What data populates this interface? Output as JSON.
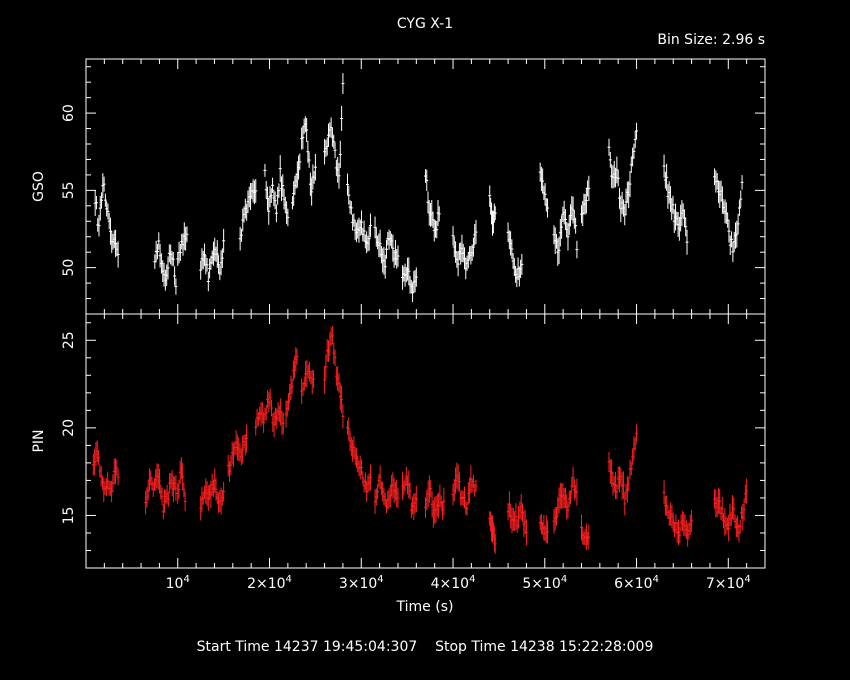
{
  "chart_data": {
    "type": "scatter",
    "title": "CYG X-1",
    "subtitle": "Bin Size:  2.96  s",
    "xlabel": "Time (s)",
    "xlim": [
      0,
      74000
    ],
    "x_tick_labels": [
      "10",
      "2×10",
      "3×10",
      "4×10",
      "5×10",
      "6×10",
      "7×10"
    ],
    "x_tick_exponent": "4",
    "x_ticks": [
      10000,
      20000,
      30000,
      40000,
      50000,
      60000,
      70000
    ],
    "footer": "Start Time 14237 19:45:04:307    Stop Time 14238 15:22:28:009",
    "panels": [
      {
        "ylabel": "GSO",
        "color": "#ffffff",
        "ylim": [
          47,
          63.5
        ],
        "y_ticks": [
          50,
          55,
          60
        ],
        "y_tick_labels": [
          "50",
          "55",
          "60"
        ],
        "segments": [
          {
            "x0": 1000,
            "x1": 3500,
            "v": [
              54.5,
              52.5,
              55.5,
              54.0,
              52.0,
              51.5,
              50.5
            ]
          },
          {
            "x0": 7500,
            "x1": 9800,
            "v": [
              50.5,
              51.5,
              50.0,
              49.5,
              50.5,
              51.0,
              49.0
            ]
          },
          {
            "x0": 10000,
            "x1": 11000,
            "v": [
              50.5,
              51.5,
              52.0
            ]
          },
          {
            "x0": 12500,
            "x1": 15000,
            "v": [
              50.0,
              51.0,
              49.5,
              50.5,
              51.0,
              50.0,
              51.5
            ]
          },
          {
            "x0": 16800,
            "x1": 18500,
            "v": [
              52.0,
              53.5,
              54.5,
              55.0
            ]
          },
          {
            "x0": 19500,
            "x1": 22000,
            "v": [
              56.0,
              54.0,
              55.5,
              53.5,
              56.0,
              54.5,
              53.0
            ]
          },
          {
            "x0": 22500,
            "x1": 23300,
            "v": [
              54.0,
              55.5,
              57.0
            ]
          },
          {
            "x0": 23500,
            "x1": 25000,
            "v": [
              58.0,
              59.5,
              55.0,
              56.5
            ]
          },
          {
            "x0": 26000,
            "x1": 28000,
            "v": [
              57.5,
              58.5,
              59.0,
              57.0,
              56.0,
              62.0
            ]
          },
          {
            "x0": 28500,
            "x1": 31000,
            "v": [
              55.0,
              53.5,
              52.0,
              53.0,
              51.5,
              52.5
            ]
          },
          {
            "x0": 31500,
            "x1": 34000,
            "v": [
              52.5,
              51.5,
              50.0,
              52.0,
              51.0,
              50.5
            ]
          },
          {
            "x0": 34500,
            "x1": 36000,
            "v": [
              49.0,
              50.0,
              48.5,
              49.5
            ]
          },
          {
            "x0": 37000,
            "x1": 38500,
            "v": [
              56.0,
              54.0,
              53.0,
              52.5,
              53.5
            ]
          },
          {
            "x0": 40000,
            "x1": 42500,
            "v": [
              52.0,
              50.5,
              51.5,
              50.0,
              51.0,
              52.0
            ]
          },
          {
            "x0": 44000,
            "x1": 44600,
            "v": [
              54.5,
              52.5,
              53.5
            ]
          },
          {
            "x0": 46000,
            "x1": 47500,
            "v": [
              52.0,
              51.0,
              50.0,
              49.5,
              50.5
            ]
          },
          {
            "x0": 49500,
            "x1": 50300,
            "v": [
              56.5,
              54.0
            ]
          },
          {
            "x0": 51000,
            "x1": 53500,
            "v": [
              52.5,
              51.0,
              53.5,
              52.0,
              54.5,
              51.5
            ]
          },
          {
            "x0": 54000,
            "x1": 54800,
            "v": [
              53.5,
              55.0
            ]
          },
          {
            "x0": 57000,
            "x1": 60000,
            "v": [
              58.0,
              55.5,
              56.5,
              54.0,
              53.5,
              55.0,
              57.0,
              58.5
            ]
          },
          {
            "x0": 63000,
            "x1": 65500,
            "v": [
              56.5,
              55.0,
              54.0,
              53.0,
              52.5,
              53.5,
              52.0
            ]
          },
          {
            "x0": 68500,
            "x1": 71500,
            "v": [
              56.0,
              55.0,
              54.0,
              52.5,
              51.0,
              52.5,
              55.5
            ]
          }
        ]
      },
      {
        "ylabel": "PIN",
        "color": "#ff2020",
        "ylim": [
          12,
          26.5
        ],
        "y_ticks": [
          15,
          20,
          25
        ],
        "y_tick_labels": [
          "15",
          "20",
          "25"
        ],
        "segments": [
          {
            "x0": 800,
            "x1": 3500,
            "v": [
              18.0,
              19.0,
              17.5,
              16.5,
              17.0,
              16.0,
              18.0,
              17.0
            ]
          },
          {
            "x0": 6500,
            "x1": 9800,
            "v": [
              16.0,
              17.0,
              16.5,
              17.5,
              15.5,
              16.0,
              17.0,
              16.5
            ]
          },
          {
            "x0": 10000,
            "x1": 10800,
            "v": [
              16.5,
              17.5,
              16.0
            ]
          },
          {
            "x0": 12500,
            "x1": 15000,
            "v": [
              15.5,
              16.5,
              16.0,
              17.0,
              15.5,
              16.5
            ]
          },
          {
            "x0": 15500,
            "x1": 17500,
            "v": [
              17.5,
              18.5,
              19.0,
              18.5,
              19.5
            ]
          },
          {
            "x0": 18500,
            "x1": 21500,
            "v": [
              20.0,
              21.0,
              20.5,
              22.0,
              20.0,
              21.0,
              20.5
            ]
          },
          {
            "x0": 21800,
            "x1": 23000,
            "v": [
              21.0,
              22.5,
              24.0
            ]
          },
          {
            "x0": 23500,
            "x1": 24800,
            "v": [
              22.0,
              23.5,
              22.5
            ]
          },
          {
            "x0": 26000,
            "x1": 28000,
            "v": [
              23.0,
              24.5,
              25.5,
              23.5,
              22.5,
              21.0
            ]
          },
          {
            "x0": 28500,
            "x1": 31000,
            "v": [
              20.0,
              19.0,
              18.0,
              17.5,
              16.5,
              17.0
            ]
          },
          {
            "x0": 31500,
            "x1": 34000,
            "v": [
              16.0,
              17.0,
              15.5,
              16.5,
              16.0
            ]
          },
          {
            "x0": 34500,
            "x1": 36000,
            "v": [
              16.5,
              17.0,
              15.5,
              16.0
            ]
          },
          {
            "x0": 37000,
            "x1": 39000,
            "v": [
              15.5,
              16.5,
              15.0,
              16.0,
              15.5
            ]
          },
          {
            "x0": 40000,
            "x1": 42500,
            "v": [
              16.5,
              17.0,
              16.0,
              15.5,
              17.0,
              16.5
            ]
          },
          {
            "x0": 44000,
            "x1": 44600,
            "v": [
              15.0,
              14.0,
              13.5
            ]
          },
          {
            "x0": 46000,
            "x1": 48000,
            "v": [
              15.5,
              15.0,
              14.5,
              15.5,
              14.0
            ]
          },
          {
            "x0": 49500,
            "x1": 50300,
            "v": [
              14.5,
              14.0
            ]
          },
          {
            "x0": 51000,
            "x1": 53500,
            "v": [
              14.5,
              15.5,
              16.5,
              15.0,
              17.0,
              16.0
            ]
          },
          {
            "x0": 54000,
            "x1": 54800,
            "v": [
              14.0,
              13.5
            ]
          },
          {
            "x0": 57000,
            "x1": 60000,
            "v": [
              18.0,
              17.0,
              16.5,
              17.5,
              16.0,
              17.0,
              18.5,
              19.5
            ]
          },
          {
            "x0": 63000,
            "x1": 66000,
            "v": [
              16.0,
              15.0,
              14.5,
              14.0,
              14.5,
              14.0,
              15.0
            ]
          },
          {
            "x0": 68500,
            "x1": 72000,
            "v": [
              16.0,
              15.5,
              15.0,
              14.5,
              15.5,
              14.0,
              15.0,
              16.5
            ]
          }
        ]
      }
    ]
  }
}
